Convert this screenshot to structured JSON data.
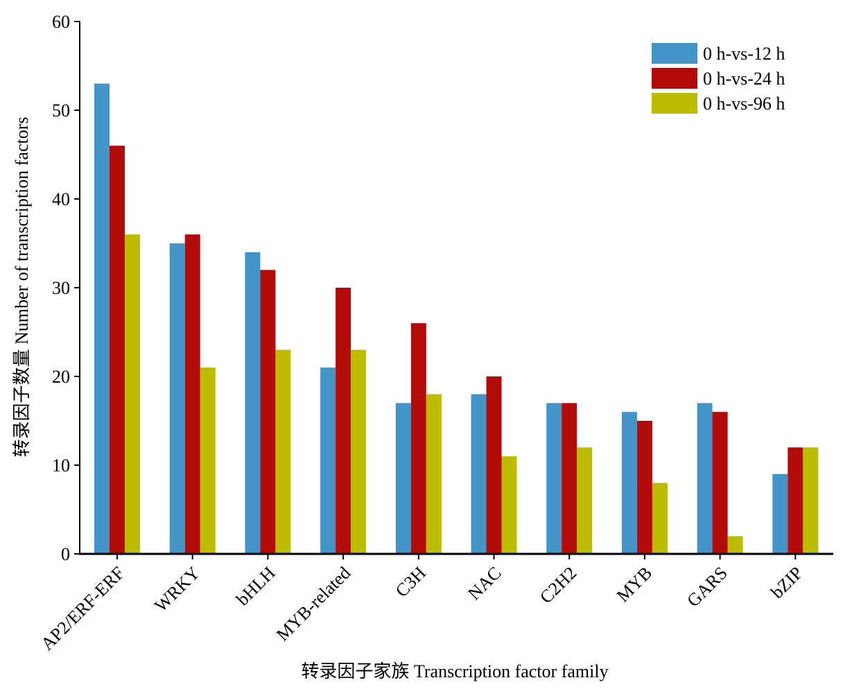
{
  "chart_data": {
    "type": "bar",
    "title": "",
    "xlabel": "转录因子家族 Transcription factor family",
    "ylabel": "转录因子数量 Number of transcription factors",
    "ylim": [
      0,
      60
    ],
    "yticks": [
      "0",
      "10",
      "20",
      "30",
      "40",
      "50",
      "60"
    ],
    "grid": false,
    "legend_position": "top-right",
    "categories": [
      "AP2/ERF-ERF",
      "WRKY",
      "bHLH",
      "MYB-related",
      "C3H",
      "NAC",
      "C2H2",
      "MYB",
      "GARS",
      "bZIP"
    ],
    "series": [
      {
        "name": "0 h-vs-12 h",
        "color": "#4395c8",
        "values": [
          53,
          35,
          34,
          21,
          17,
          18,
          17,
          16,
          17,
          9
        ]
      },
      {
        "name": "0 h-vs-24 h",
        "color": "#b30a0a",
        "values": [
          46,
          36,
          32,
          30,
          26,
          20,
          17,
          15,
          16,
          12
        ]
      },
      {
        "name": "0 h-vs-96 h",
        "color": "#bcbc00",
        "values": [
          36,
          21,
          23,
          23,
          18,
          11,
          12,
          8,
          2,
          12
        ]
      }
    ]
  }
}
